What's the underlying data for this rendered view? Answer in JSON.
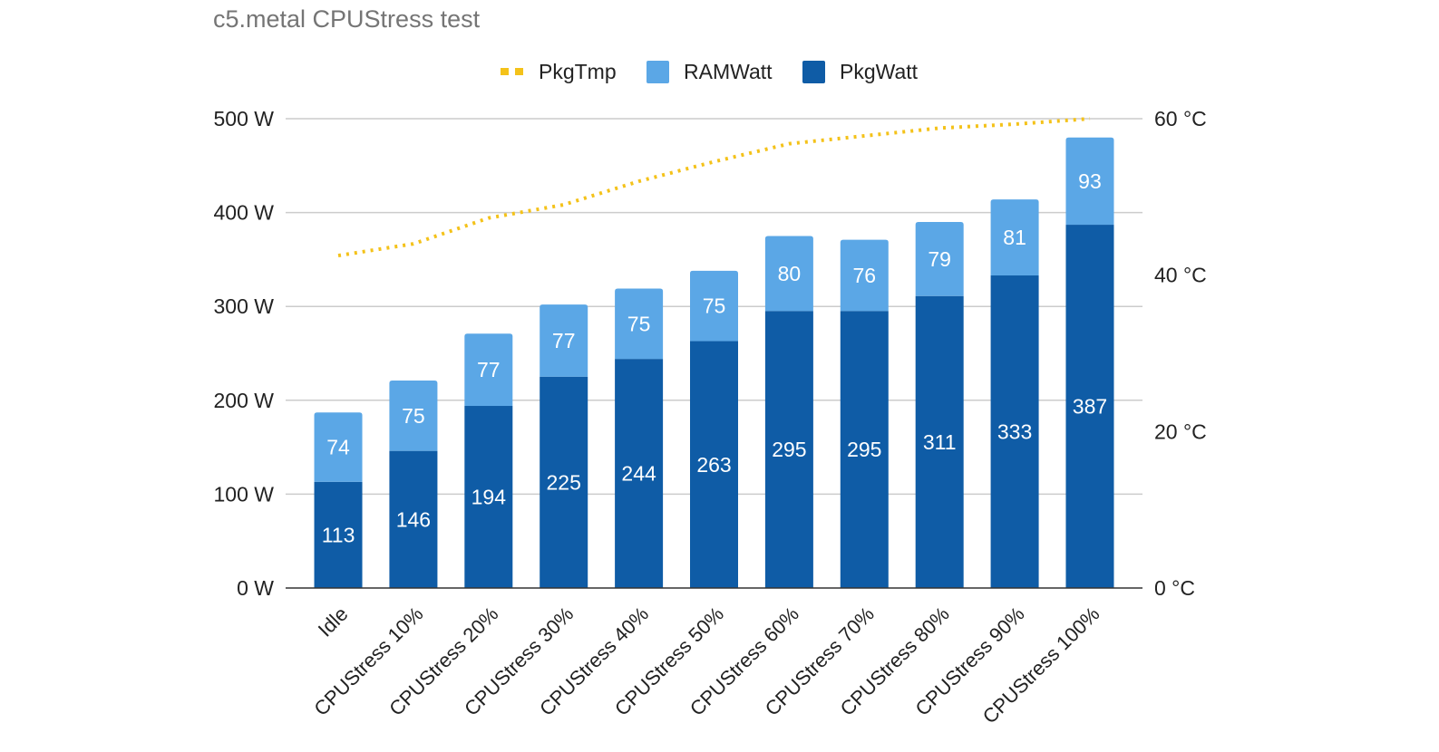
{
  "chart_data": {
    "type": "bar",
    "stacked": true,
    "title": "c5.metal CPUStress test",
    "categories": [
      "Idle",
      "CPUStress 10%",
      "CPUStress 20%",
      "CPUStress 30%",
      "CPUStress 40%",
      "CPUStress 50%",
      "CPUStress 60%",
      "CPUStress 70%",
      "CPUStress 80%",
      "CPUStress 90%",
      "CPUStress 100%"
    ],
    "series": [
      {
        "name": "PkgWatt",
        "type": "bar",
        "axis": "left",
        "color": "#0f5ca6",
        "values": [
          113,
          146,
          194,
          225,
          244,
          263,
          295,
          295,
          311,
          333,
          387
        ]
      },
      {
        "name": "RAMWatt",
        "type": "bar",
        "axis": "left",
        "color": "#5ba7e6",
        "values": [
          74,
          75,
          77,
          77,
          75,
          75,
          80,
          76,
          79,
          81,
          93
        ]
      },
      {
        "name": "PkgTmp",
        "type": "line",
        "style": "dotted",
        "axis": "right",
        "color": "#f4c21a",
        "values": [
          42.5,
          44,
          47.3,
          49,
          52,
          54.5,
          56.8,
          57.8,
          58.8,
          59.3,
          60
        ]
      }
    ],
    "legend": {
      "position": "top",
      "order": [
        "PkgTmp",
        "RAMWatt",
        "PkgWatt"
      ]
    },
    "y_left": {
      "ylim": [
        0,
        500
      ],
      "ticks": [
        0,
        100,
        200,
        300,
        400,
        500
      ],
      "tick_labels": [
        "0 W",
        "100 W",
        "200 W",
        "300 W",
        "400 W",
        "500 W"
      ]
    },
    "y_right": {
      "ylim": [
        0,
        60
      ],
      "ticks": [
        0,
        20,
        40,
        60
      ],
      "tick_labels": [
        "0 °C",
        "20 °C",
        "40 °C",
        "60 °C"
      ]
    },
    "grid": true,
    "xlabel": "",
    "ylabel": ""
  }
}
